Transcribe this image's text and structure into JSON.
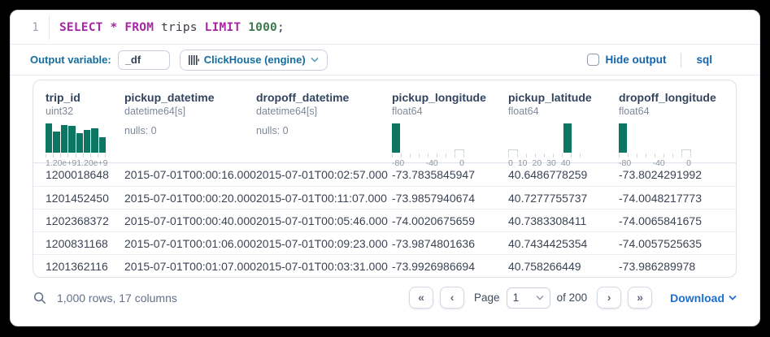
{
  "editor": {
    "line_number": "1",
    "tokens": [
      {
        "t": "SELECT",
        "c": "keyword"
      },
      {
        "t": " ",
        "c": "plain"
      },
      {
        "t": "*",
        "c": "keyword"
      },
      {
        "t": " ",
        "c": "plain"
      },
      {
        "t": "FROM",
        "c": "keyword"
      },
      {
        "t": " trips ",
        "c": "plain"
      },
      {
        "t": "LIMIT",
        "c": "keyword"
      },
      {
        "t": " ",
        "c": "plain"
      },
      {
        "t": "1000",
        "c": "number"
      },
      {
        "t": ";",
        "c": "plain"
      }
    ]
  },
  "toolbar": {
    "output_variable_label": "Output variable:",
    "output_variable_value": "_df",
    "engine_label": "ClickHouse (engine)",
    "hide_output_label": "Hide output",
    "language_label": "sql"
  },
  "table": {
    "columns": [
      {
        "name": "trip_id",
        "type": "uint32",
        "hist": {
          "bars": [
            {
              "h": 1.0
            },
            {
              "h": 0.72
            },
            {
              "h": 0.95
            },
            {
              "h": 0.92
            },
            {
              "h": 0.68
            },
            {
              "h": 0.78
            },
            {
              "h": 0.82
            },
            {
              "h": 0.52
            }
          ],
          "axis": [
            "1.20e+9",
            "1.20e+9"
          ]
        }
      },
      {
        "name": "pickup_datetime",
        "type": "datetime64[s]",
        "nulls": "nulls: 0"
      },
      {
        "name": "dropoff_datetime",
        "type": "datetime64[s]",
        "nulls": "nulls: 0"
      },
      {
        "name": "pickup_longitude",
        "type": "float64",
        "hist": {
          "bars": [
            {
              "h": 1.0
            },
            {
              "h": 0
            },
            {
              "h": 0
            },
            {
              "h": 0
            },
            {
              "h": 0
            },
            {
              "h": 0
            },
            {
              "h": 0
            },
            {
              "h": 0.1,
              "outline": true
            }
          ],
          "axis": [
            "-80",
            "-40",
            "0"
          ]
        }
      },
      {
        "name": "pickup_latitude",
        "type": "float64",
        "hist": {
          "bars": [
            {
              "h": 0.1,
              "outline": true
            },
            {
              "h": 0
            },
            {
              "h": 0
            },
            {
              "h": 0
            },
            {
              "h": 0
            },
            {
              "h": 0
            },
            {
              "h": 1.0
            },
            {
              "h": 0
            }
          ],
          "axis": [
            "0",
            "10",
            "20",
            "30",
            "40"
          ]
        }
      },
      {
        "name": "dropoff_longitude",
        "type": "float64",
        "hist": {
          "bars": [
            {
              "h": 1.0
            },
            {
              "h": 0
            },
            {
              "h": 0
            },
            {
              "h": 0
            },
            {
              "h": 0
            },
            {
              "h": 0
            },
            {
              "h": 0
            },
            {
              "h": 0.1,
              "outline": true
            }
          ],
          "axis": [
            "-80",
            "-40",
            "0"
          ]
        }
      }
    ],
    "rows": [
      [
        "1200018648",
        "2015-07-01T00:00:16.000",
        "2015-07-01T00:02:57.000",
        "-73.7835845947",
        "40.6486778259",
        "-73.8024291992"
      ],
      [
        "1201452450",
        "2015-07-01T00:00:20.000",
        "2015-07-01T00:11:07.000",
        "-73.9857940674",
        "40.7277755737",
        "-74.0048217773"
      ],
      [
        "1202368372",
        "2015-07-01T00:00:40.000",
        "2015-07-01T00:05:46.000",
        "-74.0020675659",
        "40.7383308411",
        "-74.0065841675"
      ],
      [
        "1200831168",
        "2015-07-01T00:01:06.000",
        "2015-07-01T00:09:23.000",
        "-73.9874801636",
        "40.7434425354",
        "-74.0057525635"
      ],
      [
        "1201362116",
        "2015-07-01T00:01:07.000",
        "2015-07-01T00:03:31.000",
        "-73.9926986694",
        "40.758266449",
        "-73.986289978"
      ]
    ]
  },
  "footer": {
    "summary": "1,000 rows, 17 columns",
    "first_label": "«",
    "prev_label": "‹",
    "page_label": "Page",
    "page_value": "1",
    "total_label": "of 200",
    "next_label": "›",
    "last_label": "»",
    "download_label": "Download"
  },
  "colors": {
    "histogram_teal": "#0d7662",
    "label_blue": "#146d9f",
    "action_blue": "#1565ad",
    "download_blue": "#1c6fd1",
    "keyword_purple": "#a626a4",
    "number_green": "#3c7a4e"
  }
}
